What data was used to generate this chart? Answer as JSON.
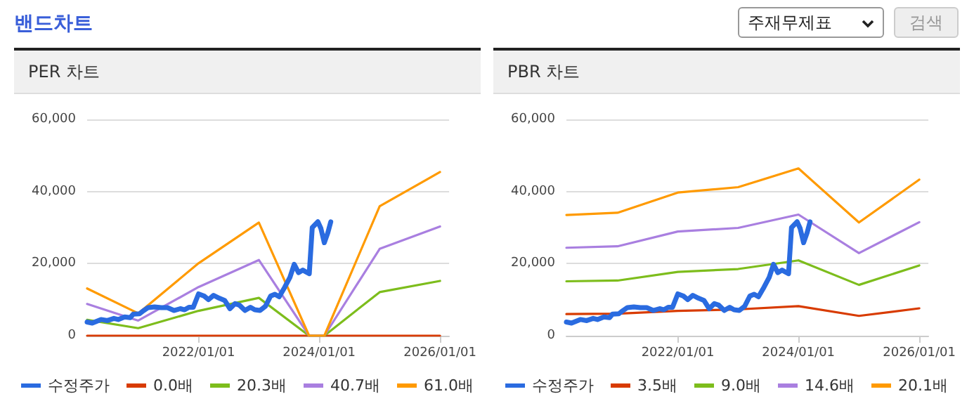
{
  "chart_data": [
    {
      "type": "line",
      "title": "PER 차트",
      "annotations": [
        "밴드차트"
      ],
      "xlim": [
        "2020-02-27",
        "2026-02-25"
      ],
      "ylim": [
        0,
        60000
      ],
      "xticks": [
        {
          "value": "2022-01-01",
          "label": "2022/01/01"
        },
        {
          "value": "2024-01-01",
          "label": "2024/01/01"
        },
        {
          "value": "2026-01-01",
          "label": "2026/01/01"
        }
      ],
      "yticks": [
        0,
        {
          "value": 20000,
          "label": "20,000"
        },
        {
          "value": 40000,
          "label": "40,000"
        },
        {
          "value": 60000,
          "label": "60,000"
        }
      ],
      "grid": "y",
      "legend": "bottom",
      "marker": "none",
      "line_style": "solid",
      "x": [
        "2020-02-27",
        "2021-01-01",
        "2022-01-01",
        "2023-01-01",
        "2023-11-01",
        "2024-02-01",
        "2025-01-01",
        "2026-01-01"
      ],
      "series": [
        {
          "name": "수정주가",
          "color": "#2a6be0",
          "x": [
            "2020-02-27",
            "2020-03-29",
            "2020-05-21",
            "2020-06-29",
            "2020-08-07",
            "2020-09-02",
            "2020-10-11",
            "2020-11-14",
            "2020-12-02",
            "2021-01-09",
            "2021-02-04",
            "2021-03-02",
            "2021-04-10",
            "2021-05-19",
            "2021-06-27",
            "2021-08-05",
            "2021-09-13",
            "2021-10-09",
            "2021-11-04",
            "2021-11-30",
            "2022-01-01",
            "2022-02-04",
            "2022-03-02",
            "2022-04-02",
            "2022-05-06",
            "2022-06-08",
            "2022-07-10",
            "2022-08-10",
            "2022-09-05",
            "2022-10-09",
            "2022-11-11",
            "2022-12-07",
            "2023-01-08",
            "2023-02-10",
            "2023-03-13",
            "2023-04-08",
            "2023-05-04",
            "2023-06-07",
            "2023-07-08",
            "2023-08-03",
            "2023-08-29",
            "2023-09-24",
            "2023-11-02",
            "2023-11-20",
            "2023-12-24",
            "2024-01-11",
            "2024-02-01",
            "2024-02-22",
            "2024-03-11"
          ],
          "values": [
            3800,
            3500,
            4500,
            4200,
            4800,
            4500,
            5200,
            5000,
            6000,
            6100,
            7000,
            7800,
            8000,
            7800,
            7800,
            7000,
            7500,
            7200,
            7900,
            7900,
            11600,
            11000,
            10000,
            11200,
            10400,
            9800,
            7500,
            8900,
            8500,
            7000,
            7900,
            7200,
            7000,
            8200,
            11000,
            11500,
            10800,
            13500,
            16200,
            19800,
            17500,
            18200,
            17200,
            30000,
            31600,
            29800,
            25800,
            28500,
            31600
          ]
        },
        {
          "name": "0.0배",
          "color": "#d83b01",
          "values": [
            0,
            0,
            0,
            0,
            0,
            0,
            0,
            0
          ]
        },
        {
          "name": "20.3배",
          "color": "#7dbd1c",
          "values": [
            4400,
            2100,
            6900,
            10500,
            0,
            0,
            12100,
            15200
          ]
        },
        {
          "name": "40.7배",
          "color": "#a97fe0",
          "values": [
            8800,
            4200,
            13500,
            21000,
            0,
            0,
            24100,
            30300
          ]
        },
        {
          "name": "61.0배",
          "color": "#ff9a00",
          "values": [
            13100,
            6200,
            20100,
            31400,
            0,
            0,
            35900,
            45400
          ]
        }
      ]
    },
    {
      "type": "line",
      "title": "PBR 차트",
      "annotations": [
        "주재무제표",
        "검색"
      ],
      "xlim": [
        "2020-02-27",
        "2026-02-25"
      ],
      "ylim": [
        0,
        60000
      ],
      "xticks": [
        {
          "value": "2022-01-01",
          "label": "2022/01/01"
        },
        {
          "value": "2024-01-01",
          "label": "2024/01/01"
        },
        {
          "value": "2026-01-01",
          "label": "2026/01/01"
        }
      ],
      "yticks": [
        0,
        {
          "value": 20000,
          "label": "20,000"
        },
        {
          "value": 40000,
          "label": "40,000"
        },
        {
          "value": 60000,
          "label": "60,000"
        }
      ],
      "grid": "y",
      "legend": "bottom",
      "marker": "none",
      "line_style": "solid",
      "x": [
        "2020-02-27",
        "2021-01-01",
        "2022-01-01",
        "2023-01-01",
        "2024-01-01",
        "2025-01-01",
        "2026-01-01"
      ],
      "series": [
        {
          "name": "수정주가",
          "color": "#2a6be0",
          "x": [
            "2020-02-27",
            "2020-03-29",
            "2020-05-21",
            "2020-06-29",
            "2020-08-07",
            "2020-09-02",
            "2020-10-11",
            "2020-11-14",
            "2020-12-02",
            "2021-01-09",
            "2021-02-04",
            "2021-03-02",
            "2021-04-10",
            "2021-05-19",
            "2021-06-27",
            "2021-08-05",
            "2021-09-13",
            "2021-10-09",
            "2021-11-04",
            "2021-11-30",
            "2022-01-01",
            "2022-02-04",
            "2022-03-02",
            "2022-04-02",
            "2022-05-06",
            "2022-06-08",
            "2022-07-10",
            "2022-08-10",
            "2022-09-05",
            "2022-10-09",
            "2022-11-11",
            "2022-12-07",
            "2023-01-08",
            "2023-02-10",
            "2023-03-13",
            "2023-04-08",
            "2023-05-04",
            "2023-06-07",
            "2023-07-08",
            "2023-08-03",
            "2023-08-29",
            "2023-09-24",
            "2023-11-02",
            "2023-11-20",
            "2023-12-24",
            "2024-01-11",
            "2024-02-01",
            "2024-02-22",
            "2024-03-11"
          ],
          "values": [
            3800,
            3500,
            4500,
            4200,
            4800,
            4500,
            5200,
            5000,
            6000,
            6100,
            7000,
            7800,
            8000,
            7800,
            7800,
            7000,
            7500,
            7200,
            7900,
            7900,
            11600,
            11000,
            10000,
            11200,
            10400,
            9800,
            7500,
            8900,
            8500,
            7000,
            7900,
            7200,
            7000,
            8200,
            11000,
            11500,
            10800,
            13500,
            16200,
            19800,
            17500,
            18200,
            17200,
            30000,
            31600,
            29800,
            25800,
            28500,
            31600
          ]
        },
        {
          "name": "3.5배",
          "color": "#d83b01",
          "values": [
            6000,
            6100,
            6900,
            7300,
            8200,
            5500,
            7600
          ]
        },
        {
          "name": "9.0배",
          "color": "#7dbd1c",
          "values": [
            15100,
            15300,
            17700,
            18500,
            20900,
            14100,
            19500
          ]
        },
        {
          "name": "14.6배",
          "color": "#a97fe0",
          "values": [
            24400,
            24800,
            28900,
            29900,
            33600,
            22900,
            31500
          ]
        },
        {
          "name": "20.1배",
          "color": "#ff9a00",
          "values": [
            33500,
            34100,
            39700,
            41200,
            46400,
            31400,
            43300
          ]
        }
      ]
    }
  ]
}
